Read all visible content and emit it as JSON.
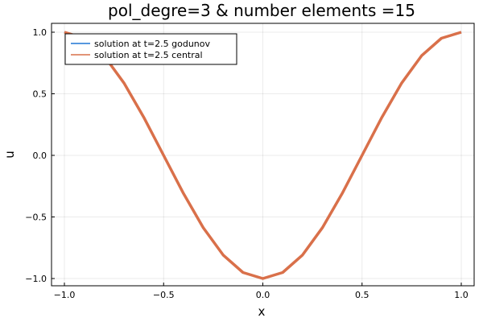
{
  "chart_data": {
    "type": "line",
    "title": "pol_degre=3 & number elements =15",
    "xlabel": "x",
    "ylabel": "u",
    "xlim": [
      -1.0,
      1.0
    ],
    "ylim": [
      -1.0,
      1.0
    ],
    "xticks": [
      -1.0,
      -0.5,
      0.0,
      0.5,
      1.0
    ],
    "xtick_labels": [
      "−1.0",
      "−0.5",
      "0.0",
      "0.5",
      "1.0"
    ],
    "yticks": [
      -1.0,
      -0.5,
      0.0,
      0.5,
      1.0
    ],
    "ytick_labels": [
      "−1.0",
      "−0.5",
      "0.0",
      "0.5",
      "1.0"
    ],
    "grid": true,
    "legend_position": "top-left",
    "series": [
      {
        "name": "solution at t=2.5 godunov",
        "color": "#1f77d4",
        "x": [
          -1.0,
          -0.9,
          -0.8,
          -0.7,
          -0.6,
          -0.5,
          -0.4,
          -0.3,
          -0.2,
          -0.1,
          0.0,
          0.1,
          0.2,
          0.3,
          0.4,
          0.5,
          0.6,
          0.7,
          0.8,
          0.9,
          1.0
        ],
        "y": [
          1.0,
          0.951,
          0.809,
          0.588,
          0.309,
          0.0,
          -0.309,
          -0.588,
          -0.809,
          -0.951,
          -1.0,
          -0.951,
          -0.809,
          -0.588,
          -0.309,
          0.0,
          0.309,
          0.588,
          0.809,
          0.951,
          1.0
        ]
      },
      {
        "name": "solution at t=2.5 central",
        "color": "#d9704a",
        "x": [
          -1.0,
          -0.9,
          -0.8,
          -0.7,
          -0.6,
          -0.5,
          -0.4,
          -0.3,
          -0.2,
          -0.1,
          0.0,
          0.1,
          0.2,
          0.3,
          0.4,
          0.5,
          0.6,
          0.7,
          0.8,
          0.9,
          1.0
        ],
        "y": [
          1.0,
          0.951,
          0.809,
          0.588,
          0.309,
          0.0,
          -0.309,
          -0.588,
          -0.809,
          -0.951,
          -1.0,
          -0.951,
          -0.809,
          -0.588,
          -0.309,
          0.0,
          0.309,
          0.588,
          0.809,
          0.951,
          1.0
        ]
      }
    ]
  }
}
